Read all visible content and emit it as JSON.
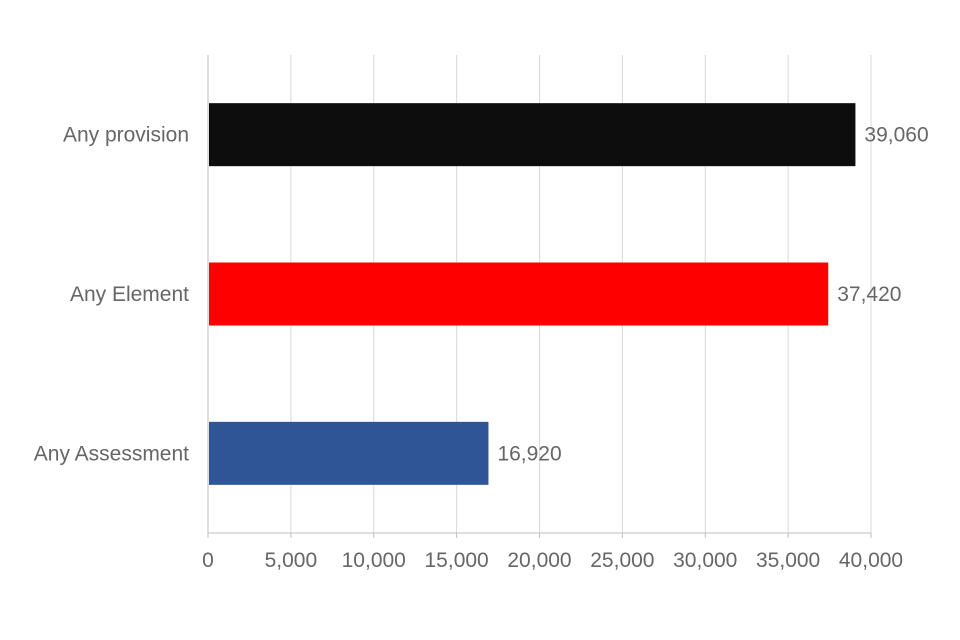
{
  "chart_data": {
    "type": "bar",
    "orientation": "horizontal",
    "categories": [
      "Any provision",
      "Any Element",
      "Any Assessment"
    ],
    "values": [
      39060,
      37420,
      16920
    ],
    "data_labels": [
      "39,060",
      "37,420",
      "16,920"
    ],
    "colors": [
      "#0d0d0d",
      "#ff0000",
      "#2f5597"
    ],
    "xlim": [
      0,
      40000
    ],
    "xticks": [
      0,
      5000,
      10000,
      15000,
      20000,
      25000,
      30000,
      35000,
      40000
    ],
    "xtick_labels": [
      "0",
      "5,000",
      "10,000",
      "15,000",
      "20,000",
      "25,000",
      "30,000",
      "35,000",
      "40,000"
    ],
    "grid": "vertical",
    "legend": "none",
    "title": "",
    "xlabel": "",
    "ylabel": ""
  }
}
